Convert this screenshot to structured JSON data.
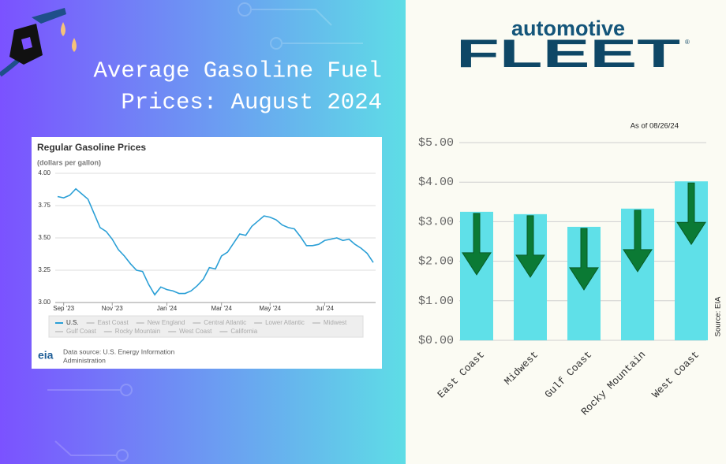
{
  "header": {
    "headline_lines": [
      "Average Gasoline Fuel",
      "Prices: August 2024"
    ],
    "logo_top": "automotive",
    "logo_main": "FLEET",
    "logo_mark": "®"
  },
  "chart_data": [
    {
      "type": "line",
      "title": "Regular Gasoline Prices",
      "subtitle": "(dollars per gallon)",
      "categories": [
        null,
        "Sep '23",
        null,
        null,
        null,
        null,
        null,
        null,
        null,
        "Nov '23",
        null,
        null,
        null,
        null,
        null,
        null,
        null,
        null,
        "Jan '24",
        null,
        null,
        null,
        null,
        null,
        null,
        null,
        null,
        "Mar '24",
        null,
        null,
        null,
        null,
        null,
        null,
        null,
        "May '24",
        null,
        null,
        null,
        null,
        null,
        null,
        null,
        null,
        "Jul '24",
        null,
        null,
        null,
        null,
        null,
        null,
        null,
        null
      ],
      "series": [
        {
          "name": "U.S.",
          "color": "#2a9fd6",
          "values": [
            3.82,
            3.81,
            3.83,
            3.88,
            3.84,
            3.8,
            3.69,
            3.58,
            3.55,
            3.49,
            3.41,
            3.36,
            3.3,
            3.25,
            3.24,
            3.14,
            3.06,
            3.12,
            3.1,
            3.09,
            3.07,
            3.07,
            3.09,
            3.13,
            3.18,
            3.27,
            3.26,
            3.36,
            3.39,
            3.46,
            3.53,
            3.52,
            3.59,
            3.63,
            3.67,
            3.66,
            3.64,
            3.6,
            3.58,
            3.57,
            3.51,
            3.44,
            3.44,
            3.45,
            3.48,
            3.49,
            3.5,
            3.48,
            3.49,
            3.45,
            3.42,
            3.38,
            3.31
          ]
        }
      ],
      "disabled_series": [
        "East Coast",
        "New England",
        "Central Atlantic",
        "Lower Atlantic",
        "Midwest",
        "Gulf Coast",
        "Rocky Mountain",
        "West Coast",
        "California"
      ],
      "ylim": [
        3,
        4
      ],
      "yticks": [
        {
          "value": 3,
          "label": "3.00"
        },
        {
          "value": 3.25,
          "label": "3.25"
        },
        {
          "value": 3.5,
          "label": "3.50"
        },
        {
          "value": 3.75,
          "label": "3.75"
        },
        {
          "value": 4,
          "label": "4.00"
        }
      ],
      "grid": true,
      "source_logo": "eia",
      "source_lines": [
        "Data source: U.S. Energy Information",
        "Administration"
      ]
    },
    {
      "type": "bar",
      "note": "As of 08/26/24",
      "source": "Source: EIA",
      "categories": [
        "East Coast",
        "Midwest",
        "Gulf Coast",
        "Rocky Mountain",
        "West Coast"
      ],
      "values": [
        3.25,
        3.19,
        2.87,
        3.33,
        4.02
      ],
      "color": "#5fe0e8",
      "ylim": [
        0,
        5
      ],
      "yticks": [
        {
          "value": 0,
          "label": "$0.00"
        },
        {
          "value": 1,
          "label": "$1.00"
        },
        {
          "value": 2,
          "label": "$2.00"
        },
        {
          "value": 3,
          "label": "$3.00"
        },
        {
          "value": 4,
          "label": "$4.00"
        },
        {
          "value": 5,
          "label": "$5.00"
        }
      ],
      "grid": true
    }
  ]
}
